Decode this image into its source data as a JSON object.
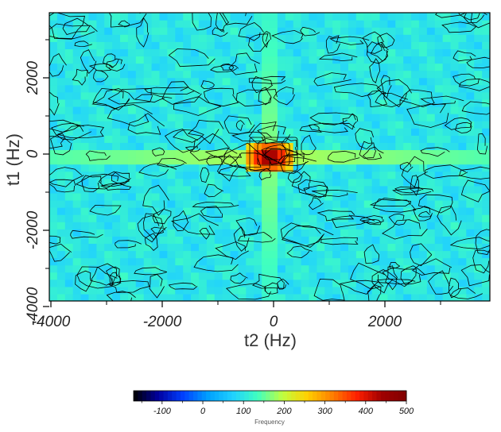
{
  "chart_data": {
    "type": "heatmap",
    "subtype": "2D spectrum with contour overlay",
    "xlabel": "t2 (Hz)",
    "ylabel": "t1 (Hz)",
    "xlim": [
      -4000,
      4000
    ],
    "ylim": [
      -4000,
      4000
    ],
    "x_ticks": [
      -4000,
      -2000,
      0,
      2000
    ],
    "y_ticks": [
      -4000,
      -2000,
      0,
      2000
    ],
    "x_tick_labels": [
      "-4000",
      "-2000",
      "0",
      "2000"
    ],
    "y_tick_labels": [
      "-4000",
      "-2000",
      "0",
      "2000"
    ],
    "grid": false,
    "background_value": 100,
    "axis_ridge_value": 170,
    "center_peak": {
      "x": 0,
      "y": 0,
      "value": 500
    },
    "colorbar": {
      "title": "Frequency",
      "range": [
        -170,
        500
      ],
      "ticks": [
        -100,
        0,
        100,
        200,
        300,
        400,
        500
      ],
      "tick_labels": [
        "-100",
        "0",
        "100",
        "200",
        "300",
        "400",
        "500"
      ],
      "placement": "bottom"
    },
    "colors": [
      "#000000",
      "#0000a0",
      "#0040ff",
      "#00a0ff",
      "#20d0ff",
      "#40ffc0",
      "#c0ff40",
      "#ffd000",
      "#ff8000",
      "#ff2000",
      "#a00000",
      "#800000"
    ]
  }
}
